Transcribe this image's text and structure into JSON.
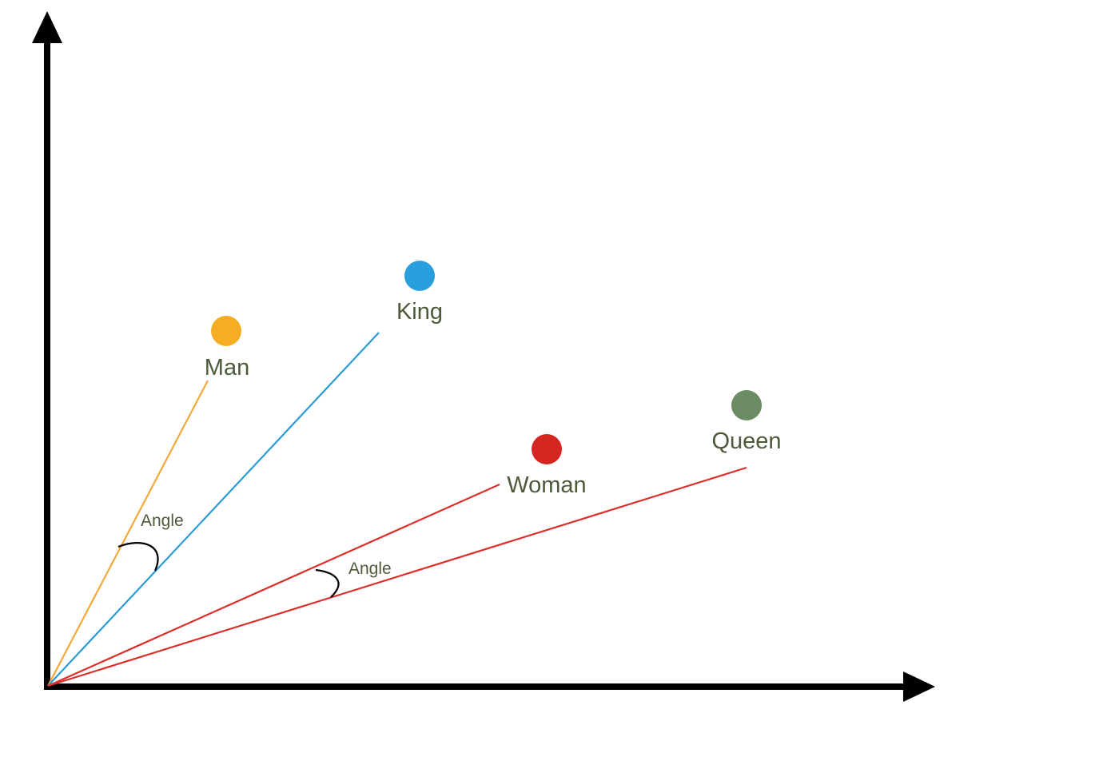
{
  "points": [
    {
      "id": "man",
      "label": "Man",
      "color": "#F5AE24",
      "line_color": "#F2A93A"
    },
    {
      "id": "king",
      "label": "King",
      "color": "#2A9FDE",
      "line_color": "#2B9BD8"
    },
    {
      "id": "woman",
      "label": "Woman",
      "color": "#D42620",
      "line_color": "#D9302C"
    },
    {
      "id": "queen",
      "label": "Queen",
      "color": "#6B8B62",
      "line_color": "#D9302C"
    }
  ],
  "angles": [
    {
      "id": "man-king",
      "label": "Angle"
    },
    {
      "id": "woman-queen",
      "label": "Angle"
    }
  ],
  "colors": {
    "axis": "#000000",
    "label_text": "#4D5A3A",
    "angle_arc": "#000000"
  }
}
